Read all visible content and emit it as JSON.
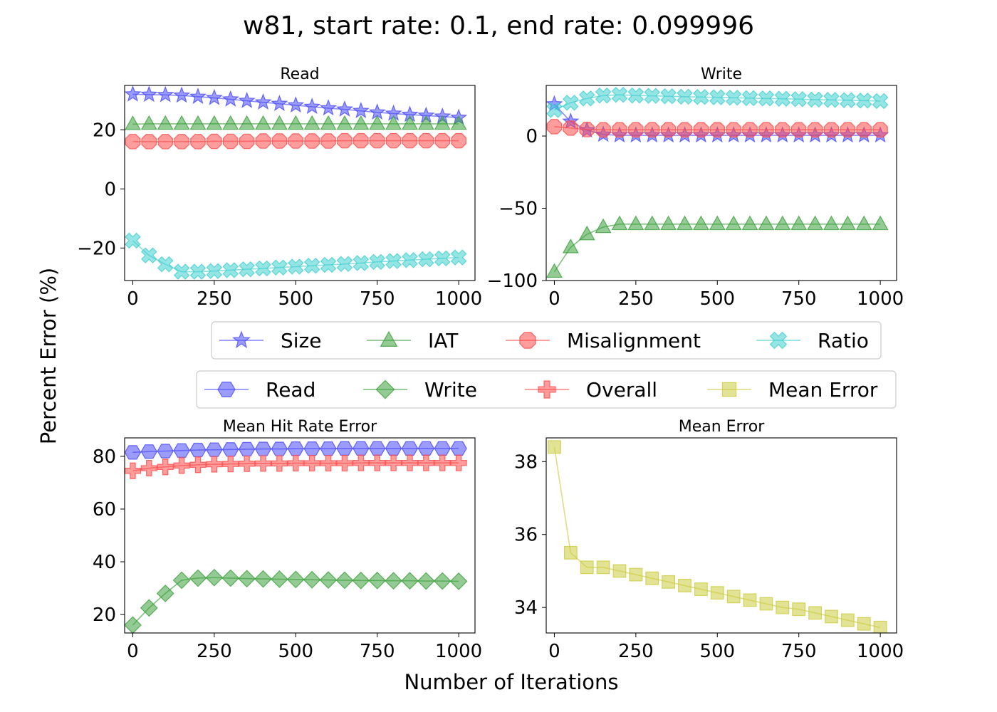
{
  "figure": {
    "title": "w81, start rate: 0.1, end rate: 0.099996",
    "xlabel": "Number of Iterations",
    "ylabel": "Percent Error (%)"
  },
  "colors": {
    "Size": "#4a4aff",
    "IAT": "#3ca03c",
    "Misalignment": "#ff4a4a",
    "Ratio": "#40d0d0",
    "Read": "#4a4aff",
    "Write": "#3ca03c",
    "Overall": "#ff4a4a",
    "MeanError": "#cccc40"
  },
  "legends": {
    "top": [
      "Size",
      "IAT",
      "Misalignment",
      "Ratio"
    ],
    "bottom": [
      "Read",
      "Write",
      "Overall",
      "Mean Error"
    ]
  },
  "chart_data": [
    {
      "type": "line",
      "title": "Read",
      "x": [
        0,
        50,
        100,
        150,
        200,
        250,
        300,
        350,
        400,
        450,
        500,
        550,
        600,
        650,
        700,
        750,
        800,
        850,
        900,
        950,
        1000
      ],
      "xlim": [
        -25,
        1050
      ],
      "ylim": [
        -31,
        35
      ],
      "xticks": [
        0,
        250,
        500,
        750,
        1000
      ],
      "yticks": [
        -20,
        0,
        20
      ],
      "series": [
        {
          "name": "Size",
          "marker": "star",
          "values": [
            32.0,
            31.9,
            31.8,
            31.6,
            31.2,
            30.8,
            30.3,
            29.8,
            29.3,
            28.8,
            28.3,
            27.8,
            27.3,
            26.9,
            26.4,
            25.9,
            25.5,
            25.1,
            24.8,
            24.5,
            24.1
          ]
        },
        {
          "name": "IAT",
          "marker": "triangle",
          "values": [
            21.9,
            22.0,
            22.0,
            22.0,
            22.0,
            22.0,
            22.0,
            22.0,
            22.0,
            22.0,
            22.0,
            22.0,
            22.0,
            22.0,
            22.0,
            22.0,
            22.0,
            22.0,
            22.0,
            22.0,
            22.0
          ]
        },
        {
          "name": "Misalignment",
          "marker": "octagon",
          "values": [
            16.0,
            16.0,
            16.0,
            16.0,
            16.0,
            16.1,
            16.1,
            16.1,
            16.2,
            16.2,
            16.2,
            16.2,
            16.2,
            16.3,
            16.3,
            16.3,
            16.3,
            16.3,
            16.3,
            16.3,
            16.3
          ]
        },
        {
          "name": "Ratio",
          "marker": "x",
          "values": [
            -17.5,
            -22.5,
            -25.5,
            -28.0,
            -28.0,
            -27.8,
            -27.5,
            -27.2,
            -26.9,
            -26.6,
            -26.3,
            -26.0,
            -25.7,
            -25.4,
            -25.1,
            -24.7,
            -24.4,
            -24.1,
            -23.8,
            -23.5,
            -23.2
          ]
        }
      ]
    },
    {
      "type": "line",
      "title": "Write",
      "x": [
        0,
        50,
        100,
        150,
        200,
        250,
        300,
        350,
        400,
        450,
        500,
        550,
        600,
        650,
        700,
        750,
        800,
        850,
        900,
        950,
        1000
      ],
      "xlim": [
        -25,
        1050
      ],
      "ylim": [
        -100,
        35
      ],
      "xticks": [
        0,
        250,
        500,
        750,
        1000
      ],
      "yticks": [
        -100,
        -50,
        0
      ],
      "series": [
        {
          "name": "Size",
          "marker": "star",
          "values": [
            22.0,
            10.0,
            4.0,
            1.0,
            0.5,
            0.5,
            0.5,
            0.5,
            0.5,
            0.5,
            0.5,
            0.5,
            0.5,
            0.5,
            0.5,
            0.5,
            0.5,
            0.5,
            0.5,
            0.5,
            0.5
          ]
        },
        {
          "name": "IAT",
          "marker": "triangle",
          "values": [
            -94.0,
            -77.0,
            -68.0,
            -63.0,
            -61.0,
            -61.0,
            -61.0,
            -61.0,
            -61.0,
            -61.0,
            -61.0,
            -61.0,
            -61.0,
            -61.0,
            -61.0,
            -61.0,
            -61.0,
            -61.0,
            -61.0,
            -61.0,
            -61.0
          ]
        },
        {
          "name": "Misalignment",
          "marker": "octagon",
          "values": [
            6.5,
            5.5,
            4.5,
            4.3,
            4.3,
            4.3,
            4.3,
            4.3,
            4.3,
            4.3,
            4.3,
            4.3,
            4.3,
            4.3,
            4.3,
            4.3,
            4.3,
            4.3,
            4.3,
            4.3,
            4.3
          ]
        },
        {
          "name": "Ratio",
          "marker": "x",
          "values": [
            18.0,
            23.0,
            26.0,
            28.0,
            28.5,
            28.0,
            27.8,
            27.5,
            27.2,
            27.0,
            26.8,
            26.5,
            26.2,
            26.0,
            25.8,
            25.5,
            25.2,
            25.0,
            24.8,
            24.5,
            24.2
          ]
        }
      ]
    },
    {
      "type": "line",
      "title": "Mean Hit Rate Error",
      "x": [
        0,
        50,
        100,
        150,
        200,
        250,
        300,
        350,
        400,
        450,
        500,
        550,
        600,
        650,
        700,
        750,
        800,
        850,
        900,
        950,
        1000
      ],
      "xlim": [
        -25,
        1050
      ],
      "ylim": [
        13,
        87
      ],
      "xticks": [
        0,
        250,
        500,
        750,
        1000
      ],
      "yticks": [
        20,
        40,
        60,
        80
      ],
      "series": [
        {
          "name": "Read",
          "marker": "hexagon",
          "values": [
            81.5,
            81.8,
            82.0,
            82.2,
            82.4,
            82.5,
            82.6,
            82.7,
            82.8,
            82.8,
            82.9,
            82.9,
            82.9,
            83.0,
            83.0,
            83.0,
            83.0,
            83.0,
            83.0,
            83.0,
            83.0
          ]
        },
        {
          "name": "Write",
          "marker": "diamond",
          "values": [
            16.0,
            22.5,
            28.0,
            33.0,
            33.8,
            34.0,
            33.8,
            33.6,
            33.5,
            33.4,
            33.3,
            33.2,
            33.1,
            33.0,
            32.9,
            32.9,
            32.8,
            32.8,
            32.7,
            32.7,
            32.6
          ]
        },
        {
          "name": "Overall",
          "marker": "plus",
          "values": [
            74.5,
            75.5,
            76.0,
            76.5,
            76.8,
            77.0,
            77.1,
            77.2,
            77.3,
            77.3,
            77.4,
            77.4,
            77.4,
            77.4,
            77.5,
            77.5,
            77.5,
            77.5,
            77.5,
            77.5,
            77.5
          ]
        }
      ]
    },
    {
      "type": "line",
      "title": "Mean Error",
      "x": [
        0,
        50,
        100,
        150,
        200,
        250,
        300,
        350,
        400,
        450,
        500,
        550,
        600,
        650,
        700,
        750,
        800,
        850,
        900,
        950,
        1000
      ],
      "xlim": [
        -25,
        1050
      ],
      "ylim": [
        33.3,
        38.65
      ],
      "xticks": [
        0,
        250,
        500,
        750,
        1000
      ],
      "yticks": [
        34,
        36,
        38
      ],
      "series": [
        {
          "name": "Mean Error",
          "marker": "square",
          "values": [
            38.4,
            35.5,
            35.1,
            35.1,
            35.0,
            34.9,
            34.8,
            34.7,
            34.6,
            34.5,
            34.4,
            34.3,
            34.2,
            34.1,
            34.0,
            33.95,
            33.85,
            33.75,
            33.65,
            33.55,
            33.45
          ]
        }
      ]
    }
  ]
}
